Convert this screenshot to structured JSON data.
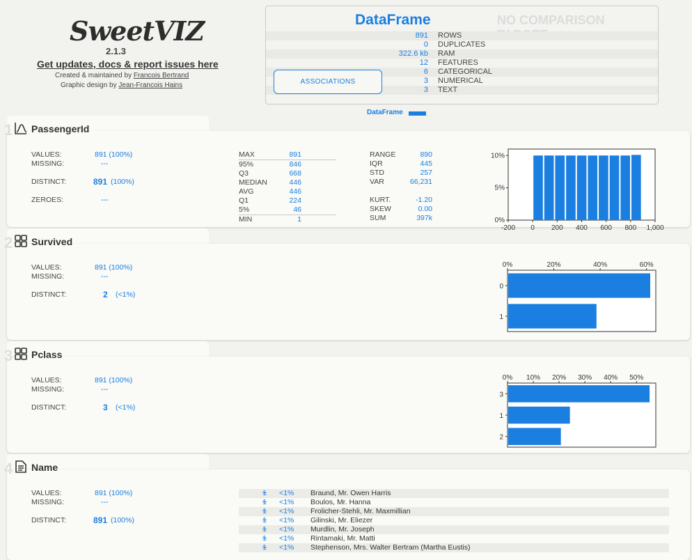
{
  "header": {
    "logo": "SweetVIZ",
    "version": "2.1.3",
    "updates_link": "Get updates, docs & report issues here",
    "created_by_prefix": "Created & maintained by",
    "created_by_name": "Francois Bertrand",
    "design_prefix": "Graphic design by",
    "design_name": "Jean-Francois Hains"
  },
  "summary": {
    "title": "DataFrame",
    "comparison": "NO COMPARISON TARGET",
    "associations_button": "ASSOCIATIONS",
    "legend": "DataFrame",
    "accent": "#1a7fe0",
    "rows": [
      {
        "value": "891",
        "label": "ROWS"
      },
      {
        "value": "0",
        "label": "DUPLICATES"
      },
      {
        "value": "322.6 kb",
        "label": "RAM"
      },
      {
        "value": "12",
        "label": "FEATURES"
      },
      {
        "value": "6",
        "label": "CATEGORICAL"
      },
      {
        "value": "3",
        "label": "NUMERICAL"
      },
      {
        "value": "3",
        "label": "TEXT"
      }
    ]
  },
  "features": [
    {
      "title": "PassengerId",
      "icon": "numeric-chart-icon",
      "values_label": "VALUES:",
      "values": "891 (100%)",
      "missing_label": "MISSING:",
      "missing": "---",
      "distinct_label": "DISTINCT:",
      "distinct_num": "891",
      "distinct_pct": "(100%)",
      "zeroes_label": "ZEROES:",
      "zeroes": "---",
      "quantiles": [
        {
          "k": "MAX",
          "v": "891"
        },
        {
          "k": "95%",
          "v": "846"
        },
        {
          "k": "Q3",
          "v": "668"
        },
        {
          "k": "MEDIAN",
          "v": "446"
        },
        {
          "k": "AVG",
          "v": "446"
        },
        {
          "k": "Q1",
          "v": "224"
        },
        {
          "k": "5%",
          "v": "46"
        },
        {
          "k": "MIN",
          "v": "1"
        }
      ],
      "stats": [
        {
          "k": "RANGE",
          "v": "890"
        },
        {
          "k": "IQR",
          "v": "445"
        },
        {
          "k": "STD",
          "v": "257"
        },
        {
          "k": "VAR",
          "v": "66,231"
        },
        {
          "k": "KURT.",
          "v": "-1.20"
        },
        {
          "k": "SKEW",
          "v": "0.00"
        },
        {
          "k": "SUM",
          "v": "397k"
        }
      ]
    },
    {
      "title": "Survived",
      "icon": "categorical-grid-icon",
      "values_label": "VALUES:",
      "values": "891 (100%)",
      "missing_label": "MISSING:",
      "missing": "---",
      "distinct_label": "DISTINCT:",
      "distinct_num": "2",
      "distinct_pct": "(<1%)"
    },
    {
      "title": "Pclass",
      "icon": "categorical-grid-icon",
      "values_label": "VALUES:",
      "values": "891 (100%)",
      "missing_label": "MISSING:",
      "missing": "---",
      "distinct_label": "DISTINCT:",
      "distinct_num": "3",
      "distinct_pct": "(<1%)"
    },
    {
      "title": "Name",
      "icon": "text-document-icon",
      "values_label": "VALUES:",
      "values": "891 (100%)",
      "missing_label": "MISSING:",
      "missing": "---",
      "distinct_label": "DISTINCT:",
      "distinct_num": "891",
      "distinct_pct": "(100%)",
      "top_values": [
        {
          "count": "1",
          "pct": "<1%",
          "name": "Braund, Mr. Owen Harris"
        },
        {
          "count": "1",
          "pct": "<1%",
          "name": "Boulos, Mr. Hanna"
        },
        {
          "count": "1",
          "pct": "<1%",
          "name": "Frolicher-Stehli, Mr. Maxmillian"
        },
        {
          "count": "1",
          "pct": "<1%",
          "name": "Gilinski, Mr. Eliezer"
        },
        {
          "count": "1",
          "pct": "<1%",
          "name": "Murdlin, Mr. Joseph"
        },
        {
          "count": "1",
          "pct": "<1%",
          "name": "Rintamaki, Mr. Matti"
        },
        {
          "count": "1",
          "pct": "<1%",
          "name": "Stephenson, Mrs. Walter Bertram (Martha Eustis)"
        }
      ]
    }
  ],
  "chart_data": [
    {
      "type": "bar",
      "x_ticks": [
        "-200",
        "0",
        "200",
        "400",
        "600",
        "800",
        "1,000"
      ],
      "y_ticks": [
        "0%",
        "5%",
        "10%"
      ],
      "xlim": [
        -200,
        1000
      ],
      "ylim": [
        0,
        11
      ],
      "bins": [
        {
          "x": 0,
          "y": 10.0
        },
        {
          "x": 89,
          "y": 10.0
        },
        {
          "x": 178,
          "y": 10.0
        },
        {
          "x": 267,
          "y": 10.0
        },
        {
          "x": 356,
          "y": 10.0
        },
        {
          "x": 445,
          "y": 10.0
        },
        {
          "x": 534,
          "y": 10.0
        },
        {
          "x": 623,
          "y": 10.0
        },
        {
          "x": 712,
          "y": 10.0
        },
        {
          "x": 801,
          "y": 10.1
        }
      ],
      "bin_width": 89
    },
    {
      "type": "bar",
      "orientation": "horizontal",
      "categories": [
        "0",
        "1"
      ],
      "values": [
        61.6,
        38.4
      ],
      "x_ticks": [
        "0%",
        "20%",
        "40%",
        "60%"
      ],
      "xlim": [
        0,
        64
      ]
    },
    {
      "type": "bar",
      "orientation": "horizontal",
      "categories": [
        "3",
        "1",
        "2"
      ],
      "values": [
        55.1,
        24.2,
        20.7
      ],
      "x_ticks": [
        "0%",
        "10%",
        "20%",
        "30%",
        "40%",
        "50%"
      ],
      "xlim": [
        0,
        57.5
      ]
    }
  ]
}
